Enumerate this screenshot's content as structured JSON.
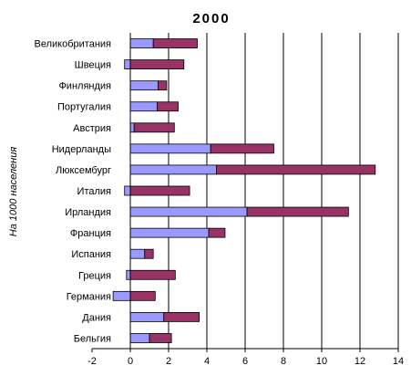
{
  "chart_data": {
    "type": "bar",
    "orientation": "horizontal",
    "stacked": true,
    "title": "2000",
    "ylabel": "На 1000 населения",
    "xlabel": "",
    "xlim": [
      -2,
      14
    ],
    "x_ticks": [
      -2,
      0,
      2,
      4,
      6,
      8,
      10,
      12,
      14
    ],
    "grid": "vertical",
    "legend": "none",
    "categories": [
      "Великобритания",
      "Швеция",
      "Финляндия",
      "Португалия",
      "Австрия",
      "Нидерланды",
      "Люксембург",
      "Италия",
      "Ирландия",
      "Франция",
      "Испания",
      "Греция",
      "Германия",
      "Дания",
      "Бельгия"
    ],
    "series": [
      {
        "color": "#9999ff",
        "values": [
          1.2,
          -0.3,
          1.45,
          1.4,
          0.2,
          4.2,
          4.5,
          -0.3,
          6.1,
          4.1,
          0.75,
          -0.2,
          -0.9,
          1.75,
          1.0
        ]
      },
      {
        "color": "#993366",
        "values": [
          2.3,
          2.8,
          0.45,
          1.1,
          2.1,
          3.3,
          8.3,
          3.1,
          5.3,
          0.85,
          0.45,
          2.35,
          1.3,
          1.85,
          1.15
        ]
      }
    ]
  }
}
